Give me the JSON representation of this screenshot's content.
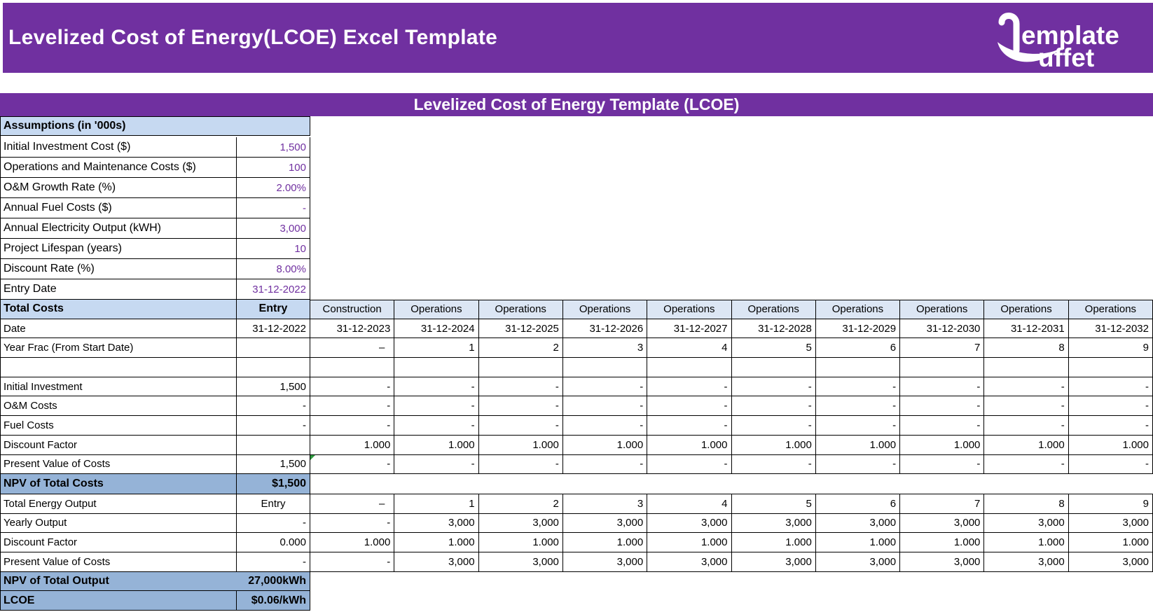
{
  "app": {
    "header_title": "Levelized Cost of Energy(LCOE) Excel Template",
    "logo": {
      "icon": "ladle-icon",
      "line1": "emplate",
      "line2": "uffet"
    }
  },
  "sheet_banner": "Levelized Cost of Energy Template (LCOE)",
  "colors": {
    "brand_purple": "#7030A0",
    "value_purple": "#7030A0",
    "section_header_blue": "#C6D9F1",
    "phase_header_blue": "#DCE6F4",
    "summary_row_blue": "#95B3D7",
    "error_flag_green": "#2E9B3F"
  },
  "assumptions": {
    "title": "Assumptions (in '000s)",
    "rows": [
      {
        "label": "Initial Investment Cost ($)",
        "value": "1,500"
      },
      {
        "label": "Operations and Maintenance Costs ($)",
        "value": "100"
      },
      {
        "label": "O&M Growth Rate (%)",
        "value": "2.00%"
      },
      {
        "label": "Annual Fuel Costs ($)",
        "value": "-"
      },
      {
        "label": "Annual Electricity Output (kWH)",
        "value": "3,000"
      },
      {
        "label": "Project Lifespan (years)",
        "value": "10"
      },
      {
        "label": "Discount Rate (%)",
        "value": "8.00%"
      },
      {
        "label": "Entry Date",
        "value": "31-12-2022"
      }
    ]
  },
  "costs": {
    "header": {
      "label": "Total Costs",
      "entry": "Entry",
      "phases": [
        "Construction",
        "Operations",
        "Operations",
        "Operations",
        "Operations",
        "Operations",
        "Operations",
        "Operations",
        "Operations",
        "Operations"
      ]
    },
    "rows": [
      {
        "label": "Date",
        "entry": "31-12-2022",
        "values": [
          "31-12-2023",
          "31-12-2024",
          "31-12-2025",
          "31-12-2026",
          "31-12-2027",
          "31-12-2028",
          "31-12-2029",
          "31-12-2030",
          "31-12-2031",
          "31-12-2032"
        ]
      },
      {
        "label": "Year Frac (From Start Date)",
        "entry": "",
        "values": [
          "–",
          "1",
          "2",
          "3",
          "4",
          "5",
          "6",
          "7",
          "8",
          "9"
        ]
      },
      {
        "label": "",
        "entry": "",
        "values": [
          "",
          "",
          "",
          "",
          "",
          "",
          "",
          "",
          "",
          ""
        ]
      },
      {
        "label": "Initial Investment",
        "entry": "1,500",
        "values": [
          "-",
          "-",
          "-",
          "-",
          "-",
          "-",
          "-",
          "-",
          "-",
          "-"
        ]
      },
      {
        "label": "O&M Costs",
        "entry": "-",
        "values": [
          "-",
          "-",
          "-",
          "-",
          "-",
          "-",
          "-",
          "-",
          "-",
          "-"
        ]
      },
      {
        "label": "Fuel Costs",
        "entry": "-",
        "values": [
          "-",
          "-",
          "-",
          "-",
          "-",
          "-",
          "-",
          "-",
          "-",
          "-"
        ]
      },
      {
        "label": "Discount Factor",
        "entry": "",
        "values": [
          "1.000",
          "1.000",
          "1.000",
          "1.000",
          "1.000",
          "1.000",
          "1.000",
          "1.000",
          "1.000",
          "1.000"
        ]
      },
      {
        "label": "Present Value of Costs",
        "entry": "1,500",
        "flag_col": 0,
        "values": [
          "-",
          "-",
          "-",
          "-",
          "-",
          "-",
          "-",
          "-",
          "-",
          "-"
        ]
      }
    ],
    "npv": {
      "label": "NPV of Total Costs",
      "value": "$1,500"
    }
  },
  "output": {
    "rows": [
      {
        "label": "Total Energy Output",
        "entry": "Entry",
        "entry_align": "center",
        "values": [
          "–",
          "1",
          "2",
          "3",
          "4",
          "5",
          "6",
          "7",
          "8",
          "9"
        ]
      },
      {
        "label": "Yearly Output",
        "entry": "-",
        "values": [
          "-",
          "3,000",
          "3,000",
          "3,000",
          "3,000",
          "3,000",
          "3,000",
          "3,000",
          "3,000",
          "3,000"
        ]
      },
      {
        "label": "Discount Factor",
        "entry": "0.000",
        "values": [
          "1.000",
          "1.000",
          "1.000",
          "1.000",
          "1.000",
          "1.000",
          "1.000",
          "1.000",
          "1.000",
          "1.000"
        ]
      },
      {
        "label": "Present Value of Costs",
        "entry": "-",
        "values": [
          "-",
          "3,000",
          "3,000",
          "3,000",
          "3,000",
          "3,000",
          "3,000",
          "3,000",
          "3,000",
          "3,000"
        ]
      }
    ],
    "npv": {
      "label": "NPV of Total Output",
      "value": "27,000kWh"
    },
    "lcoe": {
      "label": "LCOE",
      "value": "$0.06/kWh"
    }
  }
}
